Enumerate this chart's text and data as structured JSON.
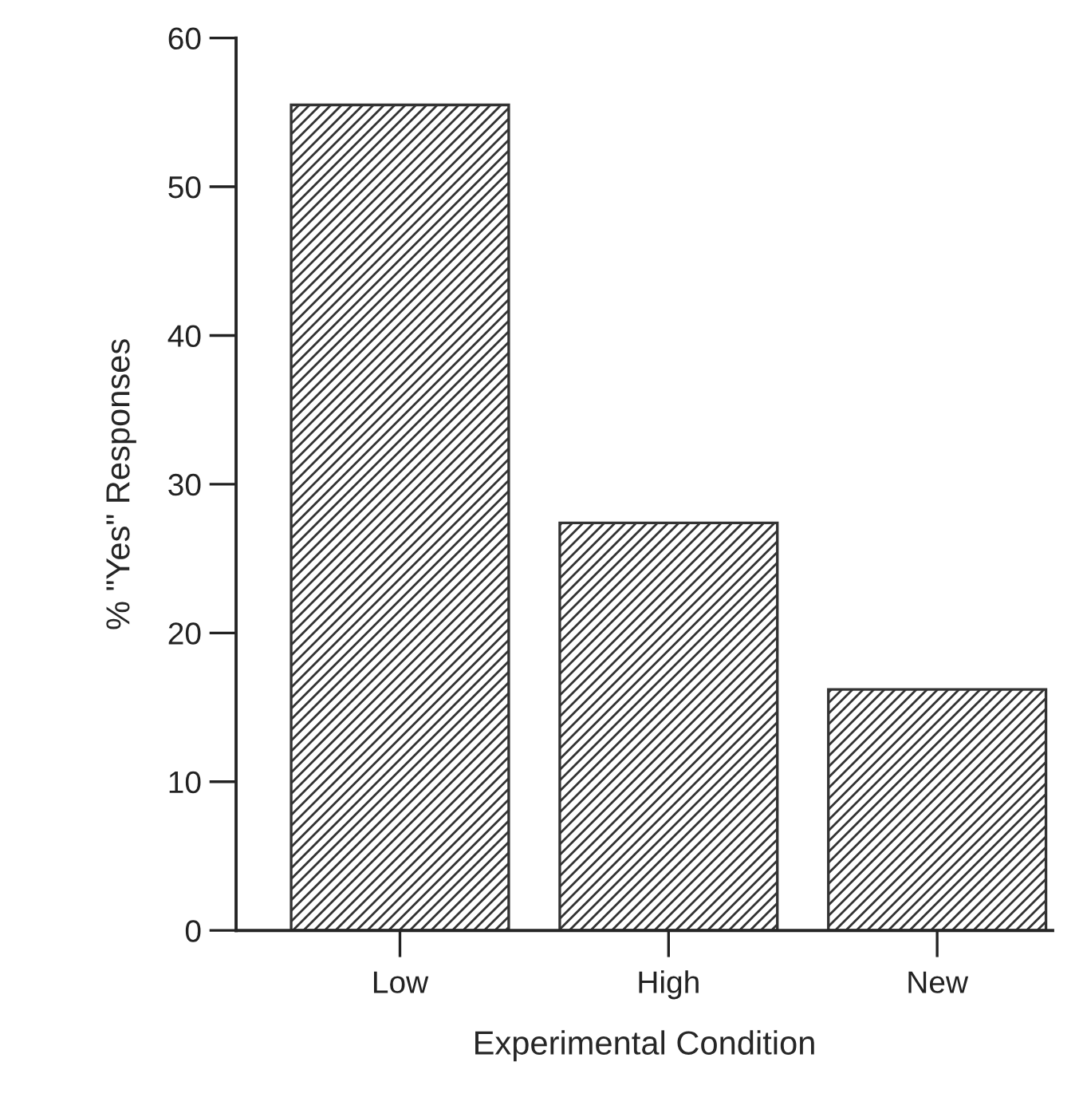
{
  "chart_data": {
    "type": "bar",
    "xlabel": "Experimental Condition",
    "ylabel": "% \"Yes\" Responses",
    "categories": [
      "Low",
      "High",
      "New"
    ],
    "values": [
      55.5,
      27.4,
      16.2
    ],
    "color": "#333333",
    "ylim": [
      0,
      60
    ],
    "yticks": [
      0,
      10,
      20,
      30,
      40,
      50,
      60
    ],
    "grid": false
  }
}
